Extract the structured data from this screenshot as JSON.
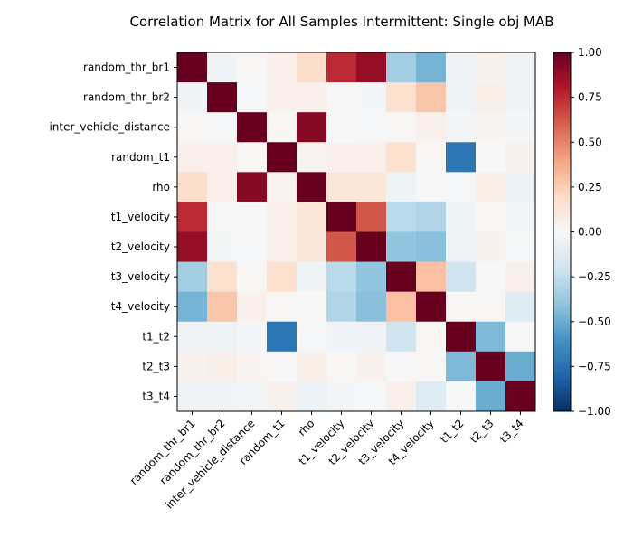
{
  "chart_data": {
    "type": "heatmap",
    "title": "Correlation Matrix for All Samples Intermittent: Single obj MAB",
    "labels": [
      "random_thr_br1",
      "random_thr_br2",
      "inter_vehicle_distance",
      "random_t1",
      "rho",
      "t1_velocity",
      "t2_velocity",
      "t3_velocity",
      "t4_velocity",
      "t1_t2",
      "t2_t3",
      "t3_t4"
    ],
    "matrix": [
      [
        1.0,
        -0.03,
        0.01,
        0.05,
        0.18,
        0.75,
        0.88,
        -0.35,
        -0.47,
        -0.03,
        0.04,
        -0.03
      ],
      [
        -0.03,
        1.0,
        -0.01,
        0.05,
        0.05,
        0.0,
        -0.02,
        0.16,
        0.28,
        -0.05,
        0.06,
        -0.03
      ],
      [
        0.01,
        -0.01,
        1.0,
        0.01,
        0.92,
        0.0,
        -0.01,
        0.01,
        0.05,
        -0.02,
        0.02,
        -0.02
      ],
      [
        0.05,
        0.05,
        0.01,
        1.0,
        0.03,
        0.05,
        0.05,
        0.16,
        0.01,
        -0.73,
        0.0,
        0.04
      ],
      [
        0.18,
        0.05,
        0.92,
        0.03,
        1.0,
        0.12,
        0.12,
        -0.05,
        0.0,
        -0.01,
        0.06,
        -0.06
      ],
      [
        0.75,
        0.0,
        0.0,
        0.05,
        0.12,
        1.0,
        0.62,
        -0.27,
        -0.3,
        -0.03,
        0.01,
        -0.02
      ],
      [
        0.88,
        -0.02,
        -0.01,
        0.05,
        0.12,
        0.62,
        1.0,
        -0.4,
        -0.42,
        -0.03,
        0.04,
        -0.01
      ],
      [
        -0.35,
        0.16,
        0.01,
        0.16,
        -0.05,
        -0.27,
        -0.4,
        1.0,
        0.3,
        -0.2,
        0.0,
        0.05
      ],
      [
        -0.47,
        0.28,
        0.05,
        0.01,
        0.0,
        -0.3,
        -0.42,
        0.3,
        1.0,
        0.01,
        0.01,
        -0.12
      ],
      [
        -0.03,
        -0.05,
        -0.02,
        -0.73,
        -0.01,
        -0.03,
        -0.03,
        -0.2,
        0.01,
        1.0,
        -0.45,
        0.0
      ],
      [
        0.04,
        0.06,
        0.02,
        0.0,
        0.06,
        0.01,
        0.04,
        0.0,
        0.01,
        -0.45,
        1.0,
        -0.5
      ],
      [
        -0.03,
        -0.03,
        -0.02,
        0.04,
        -0.06,
        -0.02,
        -0.01,
        0.05,
        -0.12,
        0.0,
        -0.5,
        1.0
      ]
    ],
    "colorbar": {
      "colormap": "RdBu_r",
      "vmin": -1.0,
      "vmax": 1.0,
      "ticks": [
        "1.00",
        "0.75",
        "0.50",
        "0.25",
        "0.00",
        "−0.25",
        "−0.50",
        "−0.75",
        "−1.00"
      ],
      "tick_values": [
        1.0,
        0.75,
        0.5,
        0.25,
        0.0,
        -0.25,
        -0.5,
        -0.75,
        -1.0
      ]
    },
    "legend": "none",
    "grid": false
  }
}
